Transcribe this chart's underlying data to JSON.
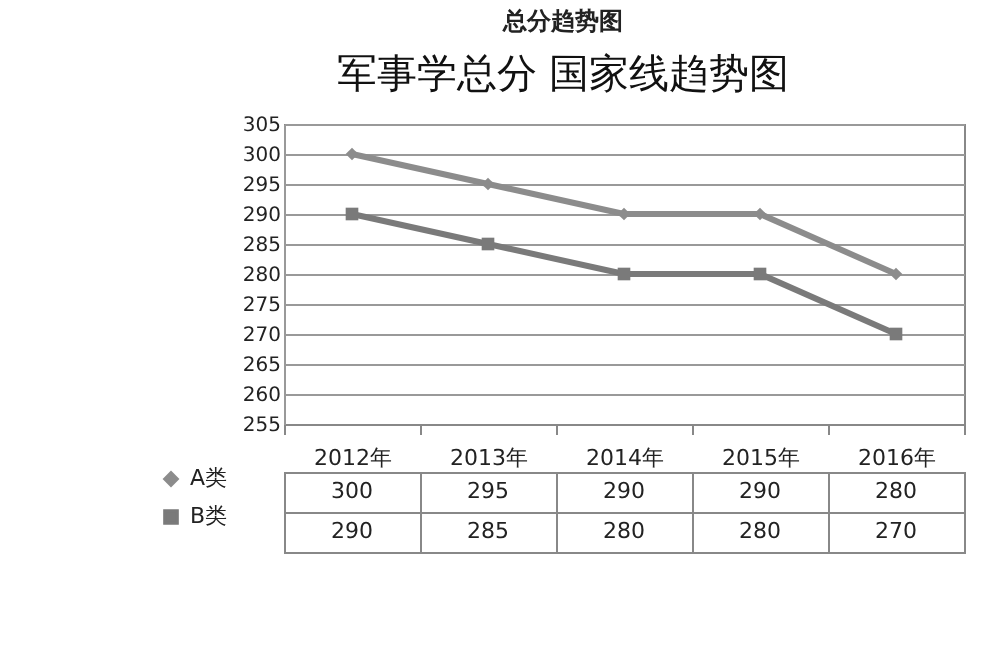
{
  "chart_data": {
    "type": "line",
    "title": "总分趋势图",
    "subtitle": "军事学总分 国家线趋势图",
    "categories": [
      "2012年",
      "2013年",
      "2014年",
      "2015年",
      "2016年"
    ],
    "series": [
      {
        "name": "A类",
        "color": "#8c8c8c",
        "marker": "diamond",
        "values": [
          300,
          295,
          290,
          290,
          280
        ]
      },
      {
        "name": "B类",
        "color": "#7a7a7a",
        "marker": "square",
        "values": [
          290,
          285,
          280,
          280,
          270
        ]
      }
    ],
    "ylim": [
      255,
      305
    ],
    "yticks": [
      255,
      260,
      265,
      270,
      275,
      280,
      285,
      290,
      295,
      300,
      305
    ],
    "grid": "y",
    "legend": "bottom left",
    "data_labels": true,
    "line_style": "solid"
  }
}
